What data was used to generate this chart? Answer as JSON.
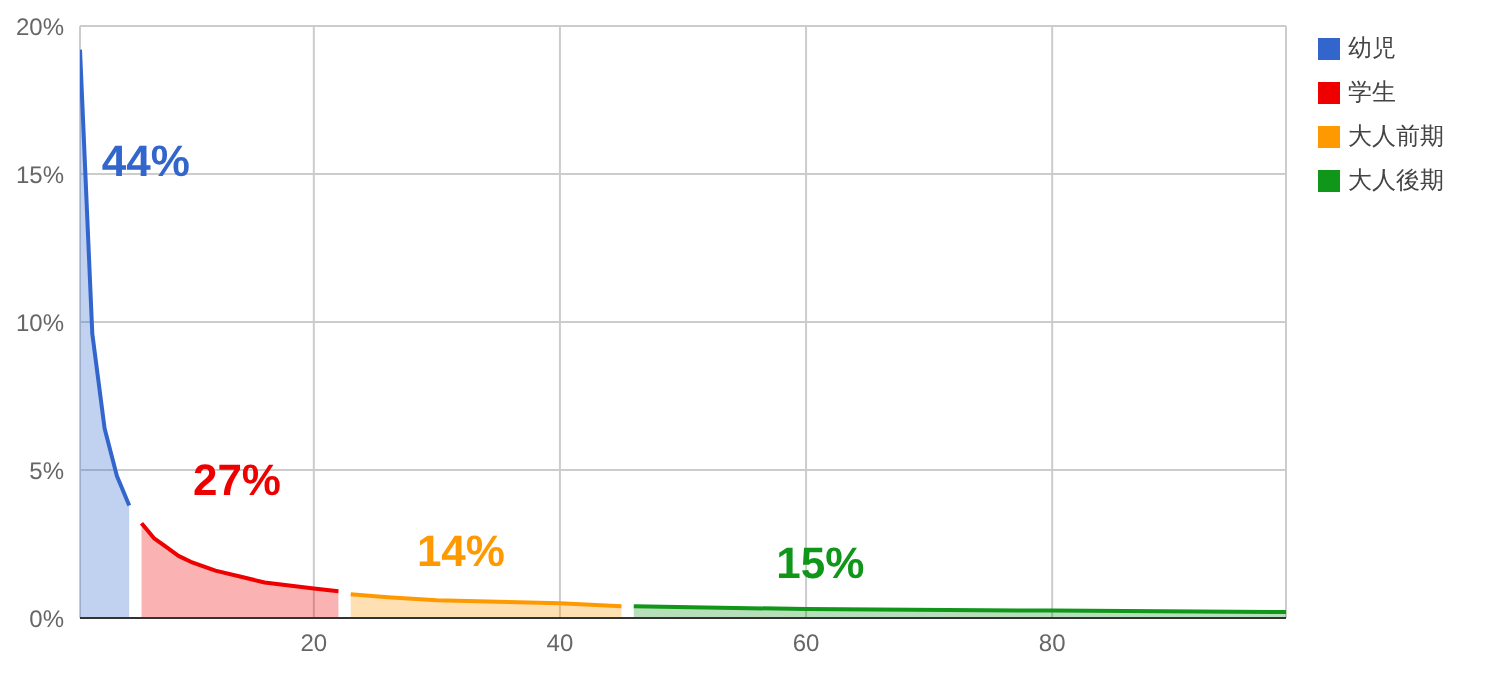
{
  "chart_data": {
    "type": "area",
    "xlim": [
      1,
      99
    ],
    "xticks": [
      20,
      40,
      60,
      80
    ],
    "ylim": [
      0,
      20
    ],
    "yticks": [
      {
        "value": 0,
        "label": "0%"
      },
      {
        "value": 5,
        "label": "5%"
      },
      {
        "value": 10,
        "label": "10%"
      },
      {
        "value": 15,
        "label": "15%"
      },
      {
        "value": 20,
        "label": "20%"
      }
    ],
    "grid": true,
    "legend": "top right",
    "marker": "none",
    "series": [
      {
        "name": "幼児",
        "color": "#3366cc",
        "x": [
          1,
          2,
          3,
          4,
          5
        ],
        "values": [
          19.2,
          9.6,
          6.4,
          4.8,
          3.8
        ]
      },
      {
        "name": "学生",
        "color": "#ee0000",
        "x": [
          6,
          7,
          8,
          9,
          10,
          12,
          14,
          16,
          18,
          20,
          22
        ],
        "values": [
          3.2,
          2.7,
          2.4,
          2.1,
          1.9,
          1.6,
          1.4,
          1.2,
          1.1,
          1.0,
          0.9
        ]
      },
      {
        "name": "大人前期",
        "color": "#ff9900",
        "x": [
          23,
          26,
          30,
          35,
          40,
          45
        ],
        "values": [
          0.8,
          0.7,
          0.6,
          0.55,
          0.5,
          0.4
        ]
      },
      {
        "name": "大人後期",
        "color": "#109618",
        "x": [
          46,
          60,
          80,
          99
        ],
        "values": [
          0.4,
          0.3,
          0.25,
          0.2
        ]
      }
    ],
    "annotations": [
      "44%",
      "27%",
      "14%",
      "15%"
    ]
  }
}
